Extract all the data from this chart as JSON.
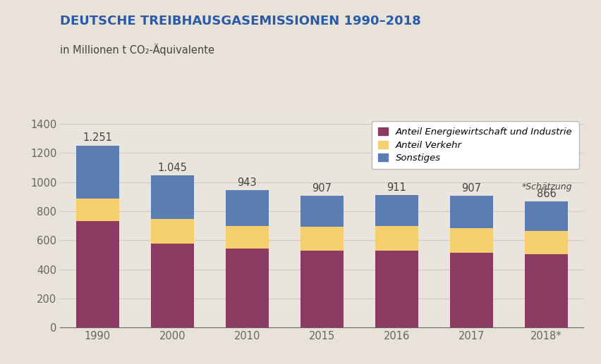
{
  "title_line1": "DEUTSCHE TREIBHAUSGASEMISSIONEN 1990–2018",
  "title_line2": "in Millionen t CO₂-Äquivalente",
  "categories": [
    "1990",
    "2000",
    "2010",
    "2015",
    "2016",
    "2017",
    "2018*"
  ],
  "totals": [
    1251,
    1045,
    943,
    907,
    911,
    907,
    866
  ],
  "total_labels": [
    "1.251",
    "1.045",
    "943",
    "907",
    "911",
    "907",
    "866"
  ],
  "energiewirtschaft_industrie": [
    730,
    575,
    545,
    530,
    530,
    515,
    503
  ],
  "verkehr": [
    155,
    170,
    155,
    165,
    168,
    170,
    163
  ],
  "sonstiges": [
    366,
    300,
    243,
    212,
    213,
    222,
    200
  ],
  "color_energie": "#8B3A62",
  "color_verkehr": "#F5CF6E",
  "color_sonstiges": "#5B7DB1",
  "background_color": "#E8E2D8",
  "plot_bg_color": "#EAE5DC",
  "legend_bg": "#FFFFFF",
  "title_color": "#2A5BA8",
  "subtitle_color": "#444444",
  "bar_label_color": "#444444",
  "axis_color": "#666666",
  "grid_color": "#D0C8BE",
  "legend_entries": [
    "Anteil Energiewirtschaft und Industrie",
    "Anteil Verkehr",
    "Sonstiges"
  ],
  "schaetzung_label": "*Schätzung",
  "ylim": [
    0,
    1450
  ],
  "yticks": [
    0,
    200,
    400,
    600,
    800,
    1000,
    1200,
    1400
  ],
  "bar_width": 0.58
}
